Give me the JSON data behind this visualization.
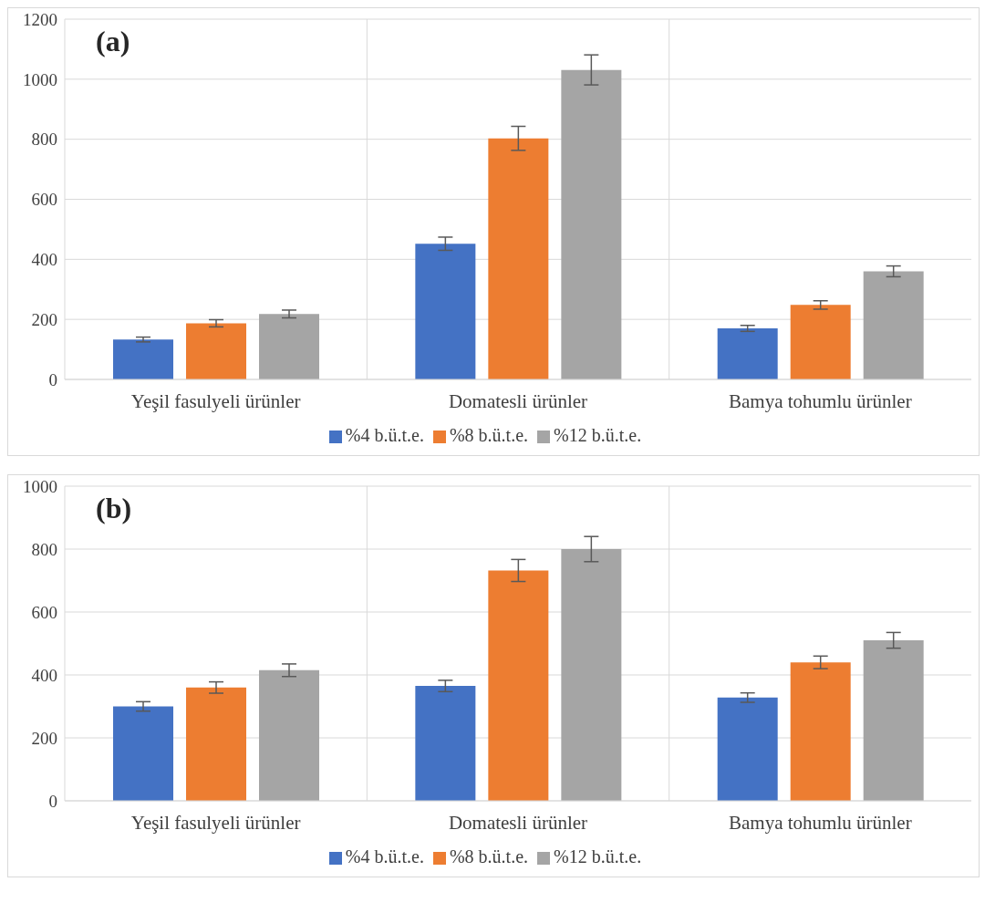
{
  "chart_data": [
    {
      "type": "bar",
      "annotations": [
        "(a)"
      ],
      "categories": [
        "Yeşil fasulyeli ürünler",
        "Domatesli ürünler",
        "Bamya tohumlu ürünler"
      ],
      "series": [
        {
          "name": "%4 b.ü.t.e.",
          "color": "#4472c4",
          "values": [
            133,
            452,
            170
          ],
          "errors": [
            8,
            22,
            10
          ]
        },
        {
          "name": "%8 b.ü.t.e.",
          "color": "#ed7d31",
          "values": [
            187,
            803,
            248
          ],
          "errors": [
            12,
            40,
            14
          ]
        },
        {
          "name": "%12 b.ü.t.e.",
          "color": "#a5a5a5",
          "values": [
            218,
            1031,
            360
          ],
          "errors": [
            13,
            50,
            18
          ]
        }
      ],
      "ylim": [
        0,
        1200
      ],
      "yticks": [
        0,
        200,
        400,
        600,
        800,
        1000,
        1200
      ],
      "grid": true,
      "legend": "bottom"
    },
    {
      "type": "bar",
      "annotations": [
        "(b)"
      ],
      "categories": [
        "Yeşil fasulyeli ürünler",
        "Domatesli ürünler",
        "Bamya tohumlu ürünler"
      ],
      "series": [
        {
          "name": "%4 b.ü.t.e.",
          "color": "#4472c4",
          "values": [
            300,
            365,
            328
          ],
          "errors": [
            15,
            18,
            15
          ]
        },
        {
          "name": "%8 b.ü.t.e.",
          "color": "#ed7d31",
          "values": [
            360,
            732,
            440
          ],
          "errors": [
            18,
            35,
            20
          ]
        },
        {
          "name": "%12 b.ü.t.e.",
          "color": "#a5a5a5",
          "values": [
            415,
            800,
            510
          ],
          "errors": [
            20,
            40,
            25
          ]
        }
      ],
      "ylim": [
        0,
        1000
      ],
      "yticks": [
        0,
        200,
        400,
        600,
        800,
        1000
      ],
      "grid": true,
      "legend": "bottom"
    }
  ]
}
